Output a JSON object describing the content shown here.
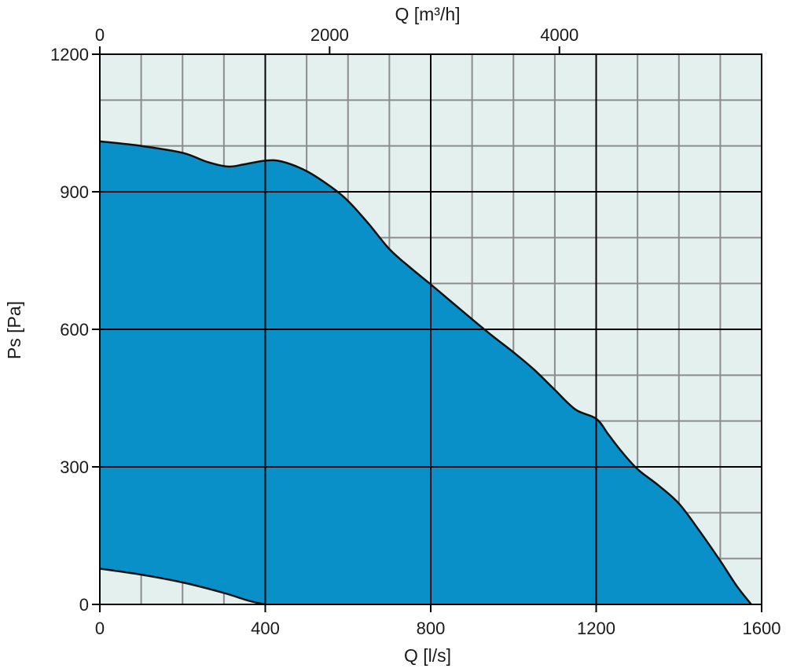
{
  "chart_data": {
    "type": "area",
    "title": "",
    "xlabel": "Q [l/s]",
    "x2label": "Q [m³/h]",
    "ylabel": "Ps [Pa]",
    "xlim": [
      0,
      1600
    ],
    "ylim": [
      0,
      1200
    ],
    "x_ticks": [
      0,
      400,
      800,
      1200,
      1600
    ],
    "x2_ticks": [
      0,
      2000,
      4000
    ],
    "x2_factor": 3.6,
    "y_ticks": [
      0,
      300,
      600,
      900,
      1200
    ],
    "minor_x_step": 100,
    "minor_y_step": 100,
    "grid": true,
    "colors": {
      "plot_background": "#e3f0ee",
      "fill": "#0a90c8",
      "curve": "#111111",
      "minor_grid": "#8c8c8c",
      "major_grid": "#000000"
    },
    "series": [
      {
        "upper_curve": [
          [
            0,
            1010
          ],
          [
            100,
            1000
          ],
          [
            200,
            985
          ],
          [
            260,
            965
          ],
          [
            310,
            955
          ],
          [
            350,
            960
          ],
          [
            400,
            968
          ],
          [
            440,
            966
          ],
          [
            500,
            945
          ],
          [
            560,
            910
          ],
          [
            600,
            880
          ],
          [
            650,
            830
          ],
          [
            700,
            775
          ],
          [
            750,
            735
          ],
          [
            800,
            698
          ],
          [
            850,
            660
          ],
          [
            900,
            622
          ],
          [
            950,
            585
          ],
          [
            1000,
            550
          ],
          [
            1050,
            512
          ],
          [
            1100,
            468
          ],
          [
            1150,
            425
          ],
          [
            1200,
            405
          ],
          [
            1230,
            370
          ],
          [
            1260,
            335
          ],
          [
            1300,
            295
          ],
          [
            1350,
            260
          ],
          [
            1400,
            220
          ],
          [
            1450,
            160
          ],
          [
            1500,
            95
          ],
          [
            1540,
            40
          ],
          [
            1575,
            0
          ]
        ],
        "lower_curve": [
          [
            0,
            78
          ],
          [
            100,
            65
          ],
          [
            200,
            48
          ],
          [
            300,
            25
          ],
          [
            360,
            8
          ],
          [
            400,
            0
          ]
        ]
      }
    ]
  }
}
